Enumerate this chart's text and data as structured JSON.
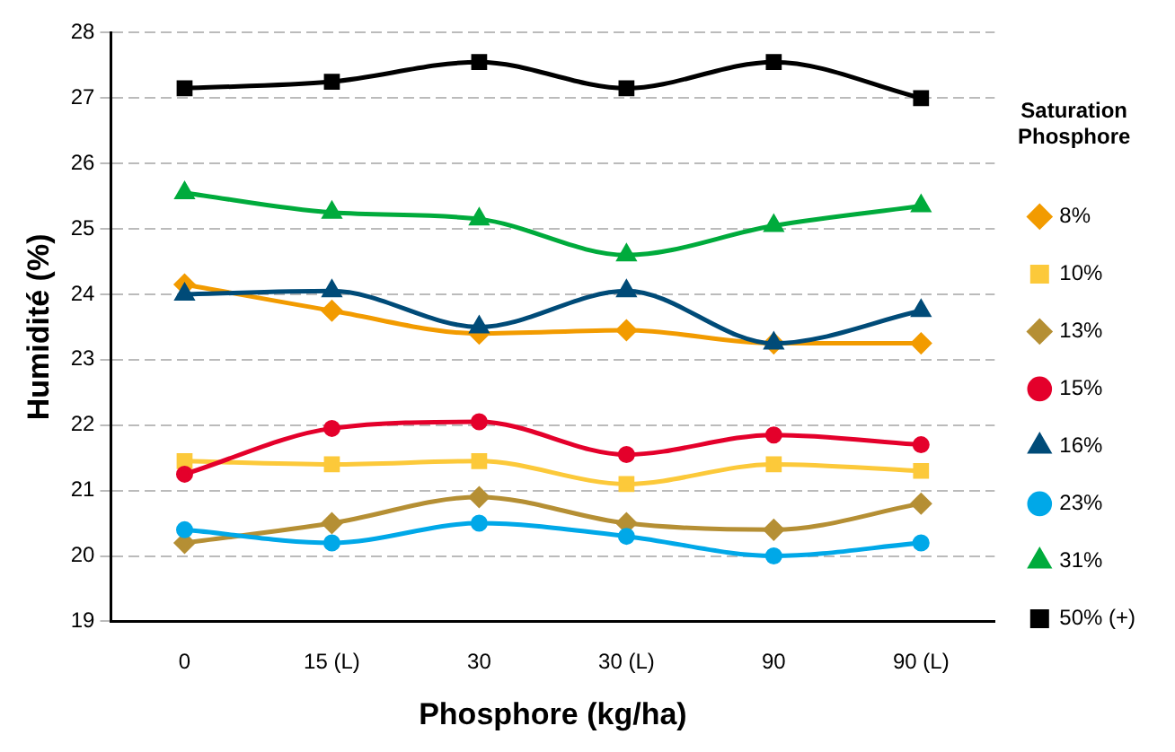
{
  "chart_data": {
    "type": "line",
    "xlabel": "Phosphore (kg/ha)",
    "ylabel": "Humidité (%)",
    "legend_title": "Saturation Phosphore",
    "legend": "right",
    "grid": "y",
    "line_style": "solid",
    "categories": [
      "0",
      "15 (L)",
      "30",
      "30 (L)",
      "90",
      "90 (L)"
    ],
    "ylim": [
      19,
      28
    ],
    "yticks": [
      19,
      20,
      21,
      22,
      23,
      24,
      25,
      26,
      27,
      28
    ],
    "series": [
      {
        "name": "8%",
        "color": "#f29b00",
        "marker": "diamond",
        "values": [
          24.15,
          23.75,
          23.4,
          23.45,
          23.25,
          23.25
        ]
      },
      {
        "name": "10%",
        "color": "#fcc93a",
        "marker": "square",
        "values": [
          21.45,
          21.4,
          21.45,
          21.1,
          21.4,
          21.3
        ]
      },
      {
        "name": "13%",
        "color": "#b58f34",
        "marker": "diamond",
        "values": [
          20.2,
          20.5,
          20.9,
          20.5,
          20.4,
          20.8
        ]
      },
      {
        "name": "15%",
        "color": "#e4002b",
        "marker": "circle",
        "values": [
          21.25,
          21.95,
          22.05,
          21.55,
          21.85,
          21.7
        ]
      },
      {
        "name": "16%",
        "color": "#004b78",
        "marker": "triangle",
        "values": [
          24.0,
          24.05,
          23.5,
          24.05,
          23.25,
          23.75
        ]
      },
      {
        "name": "23%",
        "color": "#00a8e8",
        "marker": "circle",
        "values": [
          20.4,
          20.2,
          20.5,
          20.3,
          20.0,
          20.2
        ]
      },
      {
        "name": "31%",
        "color": "#00ab3c",
        "marker": "triangle",
        "values": [
          25.55,
          25.25,
          25.15,
          24.6,
          25.05,
          25.35
        ]
      },
      {
        "name": "50% (+)",
        "color": "#000000",
        "marker": "square",
        "values": [
          27.15,
          27.25,
          27.55,
          27.15,
          27.55,
          27.0
        ]
      }
    ]
  }
}
